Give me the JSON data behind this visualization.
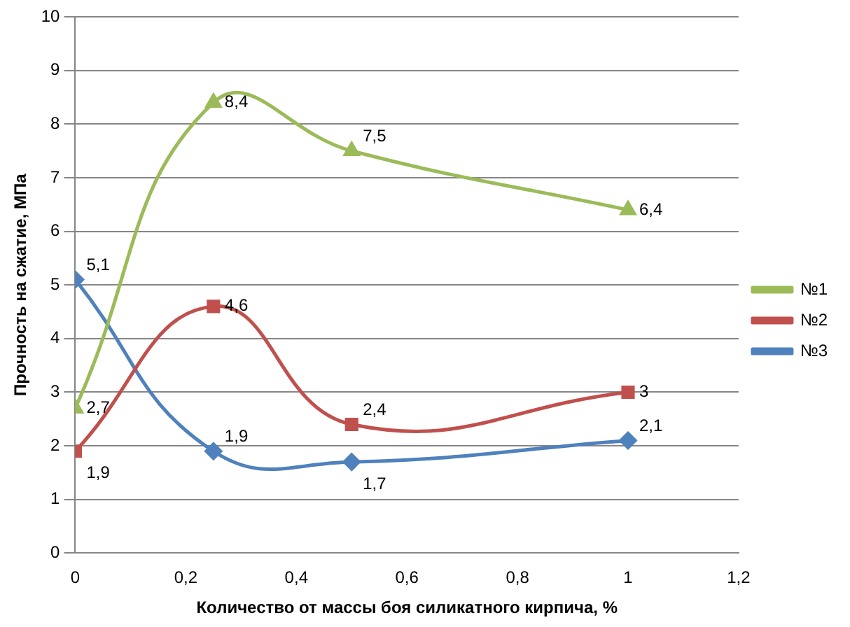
{
  "chart_data": {
    "type": "line",
    "xlabel": "Количество от массы боя силикатного кирпича, %",
    "ylabel": "Прочность на сжатие, МПа",
    "x": [
      0,
      0.25,
      0.5,
      1
    ],
    "series": [
      {
        "name": "№1",
        "color": "#9bbb59",
        "marker": "triangle",
        "values": [
          2.7,
          8.4,
          7.5,
          6.4
        ],
        "value_labels": [
          "2,7",
          "8,4",
          "7,5",
          "6,4"
        ]
      },
      {
        "name": "№2",
        "color": "#c0504d",
        "marker": "square",
        "values": [
          1.9,
          4.6,
          2.4,
          3
        ],
        "value_labels": [
          "1,9",
          "4,6",
          "2,4",
          "3"
        ]
      },
      {
        "name": "№3",
        "color": "#4f81bd",
        "marker": "diamond",
        "values": [
          5.1,
          1.9,
          1.7,
          2.1
        ],
        "value_labels": [
          "5,1",
          "1,9",
          "1,7",
          "2,1"
        ]
      }
    ],
    "xlim": [
      0,
      1.2
    ],
    "xticks": [
      0,
      {
        "value": 0.2,
        "label": "0,2"
      },
      {
        "value": 0.4,
        "label": "0,4"
      },
      {
        "value": 0.6,
        "label": "0,6"
      },
      {
        "value": 0.8,
        "label": "0,8"
      },
      1,
      {
        "value": 1.2,
        "label": "1,2"
      }
    ],
    "ylim": [
      0,
      10
    ],
    "yticks": [
      0,
      1,
      2,
      3,
      4,
      5,
      6,
      7,
      8,
      9,
      10
    ],
    "grid": "y",
    "legend": "right",
    "line_style": "solid"
  }
}
